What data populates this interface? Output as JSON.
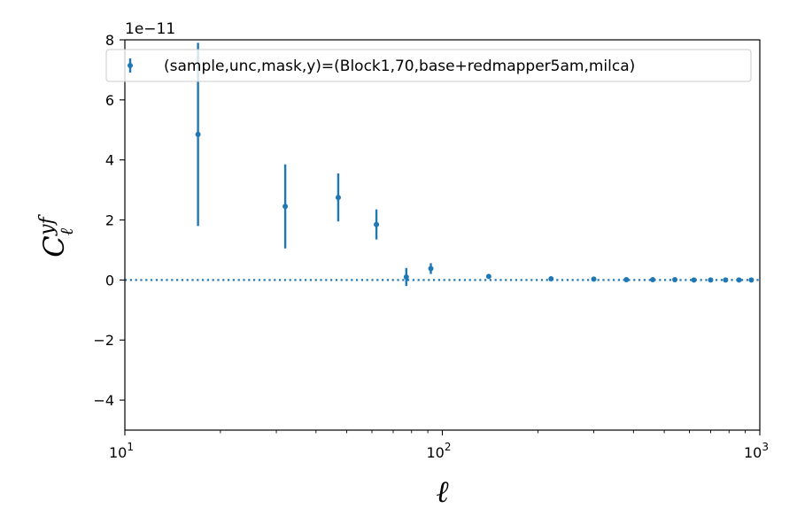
{
  "chart_data": {
    "type": "scatter",
    "xscale": "log",
    "xlim": [
      10,
      1000
    ],
    "ylim": [
      -5e-11,
      8e-11
    ],
    "y_offset_text": "1e−11",
    "xlabel": "ℓ",
    "ylabel": "C",
    "ylabel_sub": "ℓ",
    "ylabel_sup": "yf",
    "x_ticks": [
      {
        "value": 10,
        "base": "10",
        "exp": "1"
      },
      {
        "value": 100,
        "base": "10",
        "exp": "2"
      },
      {
        "value": 1000,
        "base": "10",
        "exp": "3"
      }
    ],
    "y_ticks": [
      {
        "value": -4e-11,
        "label": "−4"
      },
      {
        "value": -2e-11,
        "label": "−2"
      },
      {
        "value": 0,
        "label": "0"
      },
      {
        "value": 2e-11,
        "label": "2"
      },
      {
        "value": 4e-11,
        "label": "4"
      },
      {
        "value": 6e-11,
        "label": "6"
      },
      {
        "value": 8e-11,
        "label": "8"
      }
    ],
    "grid": false,
    "legend_position": "top",
    "zero_line": {
      "y": 0,
      "style": "dotted",
      "color": "#1f77b4"
    },
    "series": [
      {
        "name": "(sample,unc,mask,y)=(Block1,70,base+redmapper5am,milca)",
        "color": "#1f77b4",
        "points": [
          {
            "x": 17,
            "y": 4.85e-11,
            "yerr": 3.05e-11
          },
          {
            "x": 32,
            "y": 2.45e-11,
            "yerr": 1.4e-11
          },
          {
            "x": 47,
            "y": 2.75e-11,
            "yerr": 8e-12
          },
          {
            "x": 62,
            "y": 1.85e-11,
            "yerr": 5e-12
          },
          {
            "x": 77,
            "y": 1e-12,
            "yerr": 3e-12
          },
          {
            "x": 92,
            "y": 3.8e-12,
            "yerr": 1.8e-12
          },
          {
            "x": 140,
            "y": 1.2e-12,
            "yerr": 4e-13
          },
          {
            "x": 220,
            "y": 4e-13,
            "yerr": 2e-13
          },
          {
            "x": 300,
            "y": 3e-13,
            "yerr": 1e-13
          },
          {
            "x": 380,
            "y": 1e-13,
            "yerr": 5e-14
          },
          {
            "x": 460,
            "y": 1e-13,
            "yerr": 5e-14
          },
          {
            "x": 540,
            "y": 1e-13,
            "yerr": 5e-14
          },
          {
            "x": 620,
            "y": 0.0,
            "yerr": 5e-14
          },
          {
            "x": 700,
            "y": 0.0,
            "yerr": 5e-14
          },
          {
            "x": 780,
            "y": 0.0,
            "yerr": 5e-14
          },
          {
            "x": 860,
            "y": 0.0,
            "yerr": 5e-14
          },
          {
            "x": 940,
            "y": 0.0,
            "yerr": 5e-14
          }
        ]
      }
    ]
  }
}
